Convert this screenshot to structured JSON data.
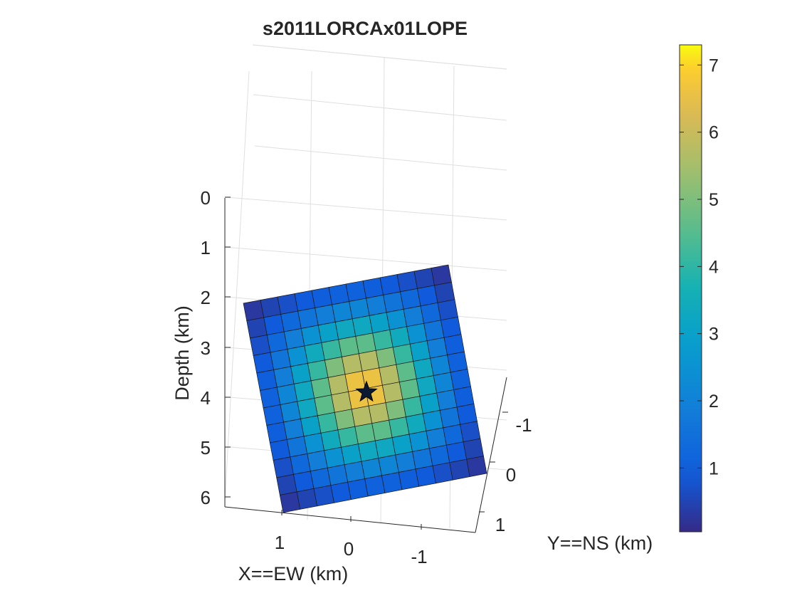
{
  "figure": {
    "title": "s2011LORCAx01LOPE",
    "background": "#ffffff"
  },
  "chart_data": {
    "type": "heatmap",
    "title": "s2011LORCAx01LOPE",
    "view": "3d",
    "colormap": "parula",
    "grid": true,
    "axes": {
      "x": {
        "label": "X==EW (km)",
        "ticks": [
          1,
          0,
          -1
        ],
        "tick_labels": [
          "1",
          "0",
          "-1"
        ]
      },
      "y": {
        "label": "Y==NS (km)",
        "ticks": [
          -1,
          0,
          1
        ],
        "tick_labels": [
          "-1",
          "0",
          "1"
        ]
      },
      "z": {
        "label": "Depth (km)",
        "ticks": [
          0,
          1,
          2,
          3,
          4,
          5,
          6
        ],
        "tick_labels": [
          "0",
          "1",
          "2",
          "3",
          "4",
          "5",
          "6"
        ],
        "reversed": true
      }
    },
    "colorbar": {
      "range": [
        0.05,
        7.3
      ],
      "ticks": [
        1,
        2,
        3,
        4,
        5,
        6,
        7
      ],
      "tick_labels": [
        "1",
        "2",
        "3",
        "4",
        "5",
        "6",
        "7"
      ]
    },
    "fault_grid": {
      "rows": 12,
      "cols": 12
    },
    "slip_values": [
      [
        0.3,
        0.5,
        0.7,
        0.9,
        1.0,
        1.1,
        1.1,
        1.0,
        0.9,
        0.7,
        0.5,
        0.3
      ],
      [
        0.5,
        0.9,
        1.3,
        1.6,
        1.9,
        2.1,
        2.1,
        1.9,
        1.6,
        1.3,
        0.9,
        0.5
      ],
      [
        0.7,
        1.3,
        1.9,
        2.5,
        3.0,
        3.3,
        3.3,
        3.0,
        2.5,
        1.9,
        1.3,
        0.7
      ],
      [
        0.9,
        1.6,
        2.5,
        3.4,
        4.1,
        4.6,
        4.6,
        4.1,
        3.4,
        2.5,
        1.6,
        0.9
      ],
      [
        1.0,
        1.9,
        3.0,
        4.1,
        5.0,
        5.7,
        5.7,
        5.0,
        4.1,
        3.0,
        1.9,
        1.0
      ],
      [
        1.1,
        2.1,
        3.3,
        4.6,
        5.7,
        6.6,
        6.6,
        5.7,
        4.6,
        3.3,
        2.1,
        1.1
      ],
      [
        1.1,
        2.1,
        3.3,
        4.6,
        5.7,
        6.6,
        6.6,
        5.7,
        4.6,
        3.3,
        2.1,
        1.1
      ],
      [
        1.0,
        1.9,
        3.0,
        4.1,
        5.0,
        5.7,
        5.7,
        5.0,
        4.1,
        3.0,
        1.9,
        1.0
      ],
      [
        0.9,
        1.6,
        2.5,
        3.4,
        4.1,
        4.6,
        4.6,
        4.1,
        3.4,
        2.5,
        1.6,
        0.9
      ],
      [
        0.7,
        1.3,
        1.9,
        2.5,
        3.0,
        3.3,
        3.3,
        3.0,
        2.5,
        1.9,
        1.3,
        0.7
      ],
      [
        0.5,
        0.9,
        1.3,
        1.6,
        1.9,
        2.1,
        2.1,
        1.9,
        1.6,
        1.3,
        0.9,
        0.5
      ],
      [
        0.3,
        0.5,
        0.7,
        0.9,
        1.0,
        1.1,
        1.1,
        1.0,
        0.9,
        0.7,
        0.5,
        0.3
      ]
    ],
    "hypocenter": {
      "marker": "star",
      "color": "#0b1a33"
    }
  }
}
